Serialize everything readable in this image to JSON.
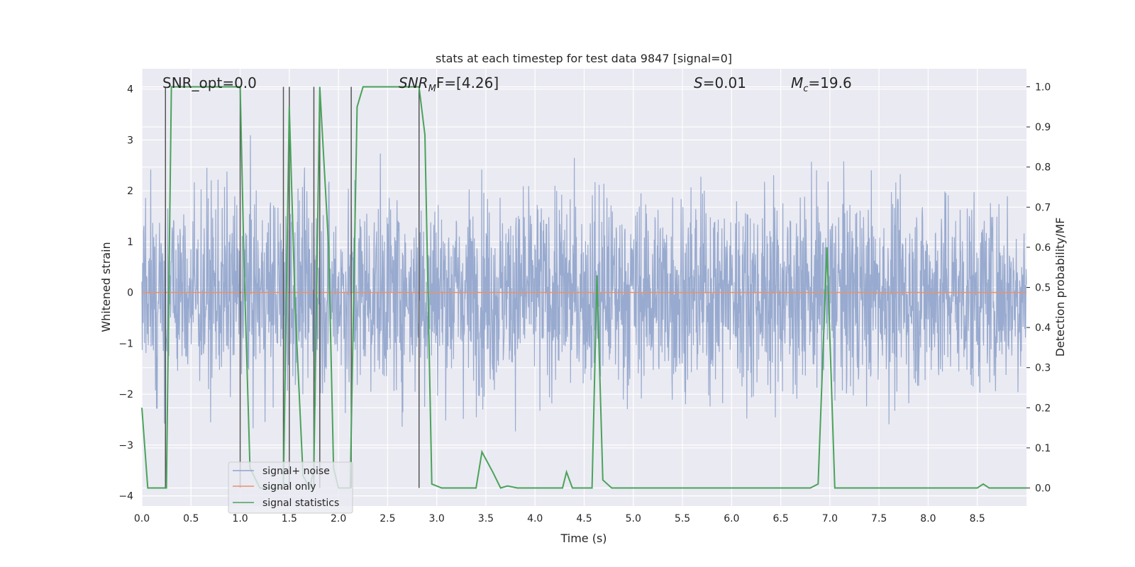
{
  "chart_data": {
    "type": "line",
    "title": "stats at each timestep for test data 9847 [signal=0]",
    "xlabel": "Time (s)",
    "ylabel": "Whitened strain",
    "ylabel_right": "Detection probability/MF",
    "xlim": [
      0.0,
      9.0
    ],
    "ylim": [
      -4.2,
      4.4
    ],
    "ylim_right": [
      -0.045,
      1.045
    ],
    "x_ticks": [
      "0.0",
      "0.5",
      "1.0",
      "1.5",
      "2.0",
      "2.5",
      "3.0",
      "3.5",
      "4.0",
      "4.5",
      "5.0",
      "5.5",
      "6.0",
      "6.5",
      "7.0",
      "7.5",
      "8.0",
      "8.5"
    ],
    "x_tick_values": [
      0.0,
      0.5,
      1.0,
      1.5,
      2.0,
      2.5,
      3.0,
      3.5,
      4.0,
      4.5,
      5.0,
      5.5,
      6.0,
      6.5,
      7.0,
      7.5,
      8.0,
      8.5
    ],
    "y_ticks": [
      "4",
      "3",
      "2",
      "1",
      "0",
      "−1",
      "−2",
      "−3",
      "−4"
    ],
    "y_tick_values": [
      4,
      3,
      2,
      1,
      0,
      -1,
      -2,
      -3,
      -4
    ],
    "y_right_ticks": [
      "1.0",
      "0.9",
      "0.8",
      "0.7",
      "0.6",
      "0.5",
      "0.4",
      "0.3",
      "0.2",
      "0.1",
      "0.0"
    ],
    "y_right_tick_values": [
      1.0,
      0.9,
      0.8,
      0.7,
      0.6,
      0.5,
      0.4,
      0.3,
      0.2,
      0.1,
      0.0
    ],
    "grid": true,
    "legend_position": "lower-left",
    "annotations": {
      "snr_opt": "SNR_opt=0.0",
      "snr_mf_sym": "SNR",
      "snr_mf_sub": "M",
      "snr_mf_rest": "F=[4.26]",
      "s_sym": "S",
      "s_rest": "=0.01",
      "mc_sym": "M",
      "mc_sub": "c",
      "mc_rest": "=19.6"
    },
    "series": [
      {
        "name": "signal+ noise",
        "color": "#8fa3cb",
        "axis": "left",
        "noise_envelope": {
          "typical_abs": 1.6,
          "peak_max": 4.0,
          "peak_min": -3.7
        }
      },
      {
        "name": "signal only",
        "color": "#e8926a",
        "axis": "left",
        "x": [
          0.0,
          9.0
        ],
        "y": [
          0.0,
          0.0
        ]
      },
      {
        "name": "signal statistics",
        "color": "#4aa35a",
        "axis": "right",
        "x": [
          0.0,
          0.06,
          0.15,
          0.25,
          0.3,
          0.4,
          0.5,
          0.6,
          0.7,
          0.8,
          0.9,
          1.0,
          1.04,
          1.1,
          1.2,
          1.3,
          1.44,
          1.5,
          1.56,
          1.64,
          1.71,
          1.75,
          1.81,
          1.9,
          1.95,
          2.0,
          2.12,
          2.19,
          2.25,
          2.35,
          2.45,
          2.55,
          2.65,
          2.75,
          2.82,
          2.88,
          2.95,
          3.05,
          3.25,
          3.4,
          3.46,
          3.57,
          3.65,
          3.72,
          3.82,
          4.0,
          4.28,
          4.32,
          4.38,
          4.58,
          4.63,
          4.69,
          4.78,
          4.9,
          5.15,
          5.5,
          6.0,
          6.5,
          6.8,
          6.88,
          6.97,
          7.05,
          7.2,
          7.6,
          8.0,
          8.5,
          8.56,
          8.62,
          9.0
        ],
        "y": [
          0.2,
          0.0,
          0.0,
          0.0,
          1.0,
          1.0,
          1.0,
          1.0,
          1.0,
          1.0,
          1.0,
          1.0,
          0.55,
          0.05,
          0.0,
          0.0,
          0.0,
          0.95,
          0.45,
          0.03,
          0.0,
          0.05,
          1.0,
          0.6,
          0.05,
          0.0,
          0.0,
          0.95,
          1.0,
          1.0,
          1.0,
          1.0,
          1.0,
          1.0,
          1.0,
          0.88,
          0.01,
          0.0,
          0.0,
          0.0,
          0.09,
          0.04,
          0.0,
          0.005,
          0.0,
          0.0,
          0.0,
          0.04,
          0.0,
          0.0,
          0.53,
          0.02,
          0.0,
          0.0,
          0.0,
          0.0,
          0.0,
          0.0,
          0.0,
          0.01,
          0.6,
          0.0,
          0.0,
          0.0,
          0.0,
          0.0,
          0.01,
          0.0,
          0.0
        ]
      }
    ],
    "vertical_markers": [
      0.24,
      1.0,
      1.44,
      1.5,
      1.75,
      1.81,
      2.13,
      2.82
    ]
  }
}
